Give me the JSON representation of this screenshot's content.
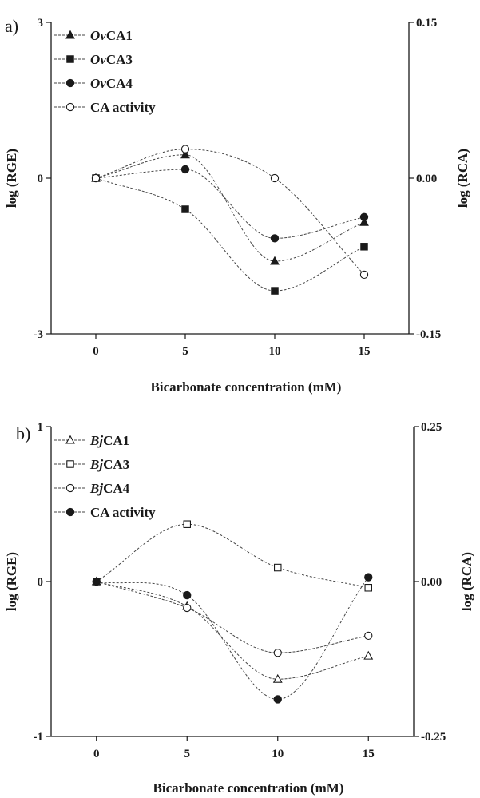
{
  "chart_data": [
    {
      "panel": "a)",
      "type": "line",
      "xlabel": "Bicarbonate concentration (mM)",
      "ylabel": "log (RGE)",
      "y2label": "log (RCA)",
      "x_ticks": [
        "0",
        "5",
        "10",
        "15"
      ],
      "y_ticks": [
        "3",
        "0",
        "-3"
      ],
      "y2_ticks": [
        "0.15",
        "0.00",
        "-0.15"
      ],
      "xlim": [
        -2.5,
        17.5
      ],
      "ylim": [
        -3,
        3
      ],
      "y2lim": [
        -0.15,
        0.15
      ],
      "grid": false,
      "legend_position": "top-left",
      "series": [
        {
          "name_prefix": "Ov",
          "name_rest": "CA1",
          "axis": "left",
          "marker": "triangle",
          "filled": true,
          "x": [
            0,
            5,
            10,
            15
          ],
          "y": [
            0.0,
            0.45,
            -1.6,
            -0.85
          ]
        },
        {
          "name_prefix": "Ov",
          "name_rest": "CA3",
          "axis": "left",
          "marker": "square",
          "filled": true,
          "x": [
            0,
            5,
            10,
            15
          ],
          "y": [
            0.0,
            -0.6,
            -2.17,
            -1.32
          ]
        },
        {
          "name_prefix": "Ov",
          "name_rest": "CA4",
          "axis": "left",
          "marker": "circle",
          "filled": true,
          "x": [
            0,
            5,
            10,
            15
          ],
          "y": [
            0.0,
            0.17,
            -1.16,
            -0.75
          ]
        },
        {
          "name_prefix": "",
          "name_rest": "CA activity",
          "axis": "right",
          "marker": "circle",
          "filled": false,
          "x": [
            0,
            5,
            10,
            15
          ],
          "y": [
            0.0,
            0.028,
            0.0,
            -0.093
          ]
        }
      ]
    },
    {
      "panel": "b)",
      "type": "line",
      "xlabel": "Bicarbonate concentration (mM)",
      "ylabel": "log (RGE)",
      "y2label": "log (RCA)",
      "x_ticks": [
        "0",
        "5",
        "10",
        "15"
      ],
      "y_ticks": [
        "1",
        "0",
        "-1"
      ],
      "y2_ticks": [
        "0.25",
        "0.00",
        "-0.25"
      ],
      "xlim": [
        -2.5,
        17.5
      ],
      "ylim": [
        -1,
        1
      ],
      "y2lim": [
        -0.25,
        0.25
      ],
      "grid": false,
      "legend_position": "top-left",
      "series": [
        {
          "name_prefix": "Bj",
          "name_rest": "CA1",
          "axis": "left",
          "marker": "triangle",
          "filled": false,
          "x": [
            0,
            5,
            10,
            15
          ],
          "y": [
            0.0,
            -0.16,
            -0.63,
            -0.48
          ]
        },
        {
          "name_prefix": "Bj",
          "name_rest": "CA3",
          "axis": "left",
          "marker": "square",
          "filled": false,
          "x": [
            0,
            5,
            10,
            15
          ],
          "y": [
            0.0,
            0.37,
            0.09,
            -0.04
          ]
        },
        {
          "name_prefix": "Bj",
          "name_rest": "CA4",
          "axis": "left",
          "marker": "circle",
          "filled": false,
          "x": [
            0,
            5,
            10,
            15
          ],
          "y": [
            0.0,
            -0.17,
            -0.46,
            -0.35
          ]
        },
        {
          "name_prefix": "",
          "name_rest": "CA activity",
          "axis": "right",
          "marker": "circle",
          "filled": true,
          "x": [
            0,
            5,
            10,
            15
          ],
          "y": [
            0.0,
            -0.022,
            -0.19,
            0.007
          ]
        }
      ]
    }
  ]
}
